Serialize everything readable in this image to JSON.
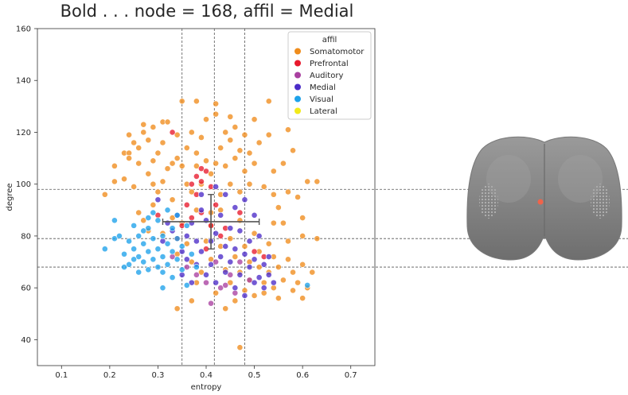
{
  "title": "Bold . . . node = 168, affil = Medial",
  "chart_data": {
    "type": "scatter",
    "xlabel": "entropy",
    "ylabel": "degree",
    "xlim": [
      0.05,
      0.75
    ],
    "ylim": [
      30,
      160
    ],
    "xticks": [
      "0.1",
      "0.2",
      "0.3",
      "0.4",
      "0.5",
      "0.6",
      "0.7"
    ],
    "yticks": [
      "40",
      "60",
      "80",
      "100",
      "120",
      "140",
      "160"
    ],
    "grid": false,
    "legend": {
      "title": "affil",
      "placement": "upper-right",
      "entries": [
        {
          "name": "Somatomotor",
          "color": "#ef8c1c"
        },
        {
          "name": "Prefrontal",
          "color": "#e8192d"
        },
        {
          "name": "Auditory",
          "color": "#a940a0"
        },
        {
          "name": "Medial",
          "color": "#4b2cc8"
        },
        {
          "name": "Visual",
          "color": "#1ea2ea"
        },
        {
          "name": "Lateral",
          "color": "#f2ea1a"
        }
      ]
    },
    "reference_lines": {
      "vertical": [
        0.35,
        0.417,
        0.48
      ],
      "horizontal": [
        68,
        79,
        98
      ]
    },
    "errorbar": {
      "x": 0.41,
      "y": 85.5,
      "xerr_low": 0.31,
      "xerr_high": 0.51,
      "yerr_low": 75,
      "yerr_high": 96
    },
    "series": [
      {
        "name": "Somatomotor",
        "color": "#ef8c1c",
        "points": [
          [
            0.19,
            96
          ],
          [
            0.21,
            107
          ],
          [
            0.21,
            101
          ],
          [
            0.23,
            102
          ],
          [
            0.23,
            112
          ],
          [
            0.24,
            112
          ],
          [
            0.24,
            110
          ],
          [
            0.24,
            119
          ],
          [
            0.25,
            116
          ],
          [
            0.25,
            99
          ],
          [
            0.26,
            114
          ],
          [
            0.26,
            108
          ],
          [
            0.27,
            120
          ],
          [
            0.27,
            123
          ],
          [
            0.28,
            117
          ],
          [
            0.28,
            104
          ],
          [
            0.29,
            100
          ],
          [
            0.29,
            122
          ],
          [
            0.29,
            109
          ],
          [
            0.3,
            112
          ],
          [
            0.3,
            97
          ],
          [
            0.31,
            124
          ],
          [
            0.31,
            116
          ],
          [
            0.31,
            101
          ],
          [
            0.32,
            106
          ],
          [
            0.32,
            124
          ],
          [
            0.33,
            108
          ],
          [
            0.33,
            94
          ],
          [
            0.34,
            110
          ],
          [
            0.34,
            119
          ],
          [
            0.35,
            132
          ],
          [
            0.35,
            107
          ],
          [
            0.36,
            114
          ],
          [
            0.36,
            100
          ],
          [
            0.37,
            97
          ],
          [
            0.37,
            120
          ],
          [
            0.38,
            112
          ],
          [
            0.38,
            132
          ],
          [
            0.38,
            107
          ],
          [
            0.39,
            100
          ],
          [
            0.39,
            118
          ],
          [
            0.4,
            125
          ],
          [
            0.4,
            109
          ],
          [
            0.41,
            104
          ],
          [
            0.42,
            131
          ],
          [
            0.42,
            127
          ],
          [
            0.42,
            108
          ],
          [
            0.43,
            96
          ],
          [
            0.43,
            114
          ],
          [
            0.44,
            120
          ],
          [
            0.44,
            107
          ],
          [
            0.45,
            117
          ],
          [
            0.45,
            126
          ],
          [
            0.45,
            100
          ],
          [
            0.46,
            122
          ],
          [
            0.46,
            110
          ],
          [
            0.47,
            97
          ],
          [
            0.47,
            113
          ],
          [
            0.48,
            105
          ],
          [
            0.48,
            119
          ],
          [
            0.49,
            112
          ],
          [
            0.49,
            100
          ],
          [
            0.5,
            125
          ],
          [
            0.5,
            108
          ],
          [
            0.51,
            116
          ],
          [
            0.52,
            99
          ],
          [
            0.53,
            132
          ],
          [
            0.53,
            119
          ],
          [
            0.54,
            105
          ],
          [
            0.54,
            96
          ],
          [
            0.55,
            91
          ],
          [
            0.56,
            108
          ],
          [
            0.57,
            97
          ],
          [
            0.57,
            121
          ],
          [
            0.58,
            113
          ],
          [
            0.59,
            95
          ],
          [
            0.6,
            87
          ],
          [
            0.6,
            80
          ],
          [
            0.61,
            101
          ],
          [
            0.63,
            101
          ],
          [
            0.63,
            79
          ],
          [
            0.26,
            89
          ],
          [
            0.27,
            86
          ],
          [
            0.28,
            82
          ],
          [
            0.29,
            92
          ],
          [
            0.31,
            81
          ],
          [
            0.33,
            87
          ],
          [
            0.34,
            73
          ],
          [
            0.35,
            85
          ],
          [
            0.36,
            77
          ],
          [
            0.37,
            70
          ],
          [
            0.38,
            62
          ],
          [
            0.38,
            90
          ],
          [
            0.39,
            66
          ],
          [
            0.4,
            78
          ],
          [
            0.41,
            71
          ],
          [
            0.41,
            84
          ],
          [
            0.42,
            58
          ],
          [
            0.43,
            76
          ],
          [
            0.43,
            90
          ],
          [
            0.44,
            67
          ],
          [
            0.45,
            62
          ],
          [
            0.45,
            79
          ],
          [
            0.46,
            72
          ],
          [
            0.46,
            55
          ],
          [
            0.47,
            86
          ],
          [
            0.47,
            66
          ],
          [
            0.48,
            59
          ],
          [
            0.48,
            76
          ],
          [
            0.49,
            70
          ],
          [
            0.49,
            63
          ],
          [
            0.5,
            81
          ],
          [
            0.5,
            57
          ],
          [
            0.51,
            68
          ],
          [
            0.51,
            74
          ],
          [
            0.52,
            62
          ],
          [
            0.52,
            58
          ],
          [
            0.53,
            77
          ],
          [
            0.53,
            66
          ],
          [
            0.54,
            72
          ],
          [
            0.54,
            60
          ],
          [
            0.55,
            56
          ],
          [
            0.55,
            68
          ],
          [
            0.56,
            63
          ],
          [
            0.57,
            78
          ],
          [
            0.57,
            71
          ],
          [
            0.58,
            59
          ],
          [
            0.58,
            66
          ],
          [
            0.59,
            62
          ],
          [
            0.6,
            69
          ],
          [
            0.6,
            56
          ],
          [
            0.61,
            60
          ],
          [
            0.62,
            66
          ],
          [
            0.47,
            37
          ],
          [
            0.34,
            52
          ],
          [
            0.37,
            55
          ],
          [
            0.44,
            52
          ],
          [
            0.56,
            85
          ],
          [
            0.54,
            85
          ],
          [
            0.41,
            89
          ]
        ]
      },
      {
        "name": "Prefrontal",
        "color": "#e8192d",
        "points": [
          [
            0.33,
            120
          ],
          [
            0.38,
            103
          ],
          [
            0.39,
            106
          ],
          [
            0.4,
            105
          ],
          [
            0.39,
            101
          ],
          [
            0.37,
            100
          ],
          [
            0.38,
            96
          ],
          [
            0.41,
            99
          ],
          [
            0.42,
            92
          ],
          [
            0.36,
            92
          ],
          [
            0.39,
            89
          ],
          [
            0.35,
            84
          ],
          [
            0.41,
            84
          ],
          [
            0.44,
            83
          ],
          [
            0.3,
            88
          ],
          [
            0.34,
            79
          ],
          [
            0.43,
            80
          ],
          [
            0.4,
            75
          ],
          [
            0.5,
            74
          ],
          [
            0.52,
            72
          ],
          [
            0.47,
            89
          ],
          [
            0.37,
            87
          ]
        ]
      },
      {
        "name": "Auditory",
        "color": "#a940a0",
        "points": [
          [
            0.36,
            68
          ],
          [
            0.38,
            65
          ],
          [
            0.4,
            62
          ],
          [
            0.42,
            70
          ],
          [
            0.43,
            60
          ],
          [
            0.45,
            65
          ],
          [
            0.47,
            70
          ],
          [
            0.49,
            63
          ],
          [
            0.46,
            58
          ],
          [
            0.41,
            54
          ],
          [
            0.44,
            61
          ],
          [
            0.33,
            72
          ]
        ]
      },
      {
        "name": "Medial",
        "color": "#4b2cc8",
        "points": [
          [
            0.3,
            94
          ],
          [
            0.32,
            85
          ],
          [
            0.31,
            78
          ],
          [
            0.33,
            82
          ],
          [
            0.34,
            88
          ],
          [
            0.35,
            74
          ],
          [
            0.36,
            80
          ],
          [
            0.37,
            85
          ],
          [
            0.38,
            78
          ],
          [
            0.38,
            69
          ],
          [
            0.39,
            74
          ],
          [
            0.39,
            90
          ],
          [
            0.4,
            65
          ],
          [
            0.4,
            86
          ],
          [
            0.41,
            69
          ],
          [
            0.41,
            78
          ],
          [
            0.42,
            62
          ],
          [
            0.42,
            81
          ],
          [
            0.43,
            72
          ],
          [
            0.43,
            88
          ],
          [
            0.44,
            66
          ],
          [
            0.44,
            76
          ],
          [
            0.45,
            83
          ],
          [
            0.45,
            70
          ],
          [
            0.46,
            60
          ],
          [
            0.46,
            75
          ],
          [
            0.47,
            82
          ],
          [
            0.47,
            65
          ],
          [
            0.48,
            73
          ],
          [
            0.48,
            57
          ],
          [
            0.49,
            68
          ],
          [
            0.49,
            78
          ],
          [
            0.5,
            62
          ],
          [
            0.5,
            71
          ],
          [
            0.51,
            64
          ],
          [
            0.51,
            80
          ],
          [
            0.52,
            69
          ],
          [
            0.52,
            60
          ],
          [
            0.53,
            65
          ],
          [
            0.53,
            72
          ],
          [
            0.54,
            62
          ],
          [
            0.5,
            88
          ],
          [
            0.48,
            94
          ],
          [
            0.46,
            91
          ],
          [
            0.44,
            96
          ],
          [
            0.42,
            99
          ],
          [
            0.39,
            96
          ],
          [
            0.36,
            71
          ],
          [
            0.35,
            65
          ],
          [
            0.37,
            62
          ]
        ]
      },
      {
        "name": "Visual",
        "color": "#1ea2ea",
        "points": [
          [
            0.19,
            75
          ],
          [
            0.21,
            86
          ],
          [
            0.21,
            79
          ],
          [
            0.22,
            80
          ],
          [
            0.23,
            68
          ],
          [
            0.23,
            73
          ],
          [
            0.24,
            78
          ],
          [
            0.24,
            69
          ],
          [
            0.25,
            84
          ],
          [
            0.25,
            75
          ],
          [
            0.26,
            72
          ],
          [
            0.26,
            80
          ],
          [
            0.26,
            66
          ],
          [
            0.27,
            77
          ],
          [
            0.27,
            70
          ],
          [
            0.28,
            83
          ],
          [
            0.28,
            74
          ],
          [
            0.28,
            67
          ],
          [
            0.29,
            79
          ],
          [
            0.29,
            71
          ],
          [
            0.3,
            86
          ],
          [
            0.3,
            75
          ],
          [
            0.3,
            68
          ],
          [
            0.31,
            80
          ],
          [
            0.31,
            72
          ],
          [
            0.31,
            60
          ],
          [
            0.32,
            77
          ],
          [
            0.32,
            69
          ],
          [
            0.33,
            83
          ],
          [
            0.33,
            74
          ],
          [
            0.33,
            64
          ],
          [
            0.34,
            79
          ],
          [
            0.34,
            71
          ],
          [
            0.35,
            67
          ],
          [
            0.35,
            76
          ],
          [
            0.36,
            61
          ],
          [
            0.36,
            84
          ],
          [
            0.37,
            73
          ],
          [
            0.38,
            68
          ],
          [
            0.34,
            88
          ],
          [
            0.32,
            90
          ],
          [
            0.29,
            89
          ],
          [
            0.27,
            82
          ],
          [
            0.25,
            71
          ],
          [
            0.28,
            87
          ],
          [
            0.31,
            66
          ],
          [
            0.61,
            61
          ]
        ]
      },
      {
        "name": "Lateral",
        "color": "#f2ea1a",
        "points": []
      }
    ]
  },
  "brain": {
    "highlight_color": "#f0634a",
    "silhouette_color": "#8a8a8a"
  }
}
